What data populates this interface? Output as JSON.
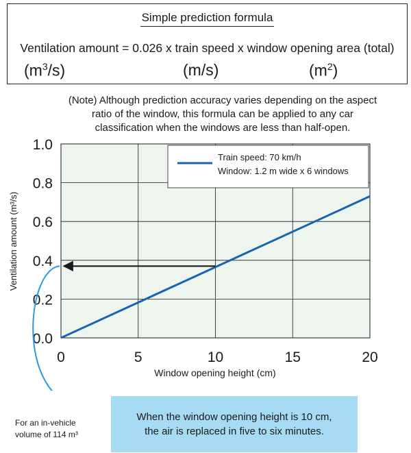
{
  "formula": {
    "title": "Simple prediction formula",
    "equation": "Ventilation amount = 0.026 x train speed x window opening area (total)",
    "unit_ventilation_base": "(m",
    "unit_ventilation_exp": "3",
    "unit_ventilation_tail": "/s)",
    "unit_speed": "(m/s)",
    "unit_area_base": "(m",
    "unit_area_exp": "2",
    "unit_area_tail": ")"
  },
  "note": "(Note) Although prediction accuracy varies depending on the aspect ratio of the window, this formula can be applied to any car classification when the windows are less than half-open.",
  "chart_data": {
    "type": "line",
    "xlabel": "Window opening height (cm)",
    "ylabel": "Ventilation amount (m³/s)",
    "xlim": [
      0,
      20
    ],
    "ylim": [
      0.0,
      1.0
    ],
    "x_ticks": [
      "0",
      "5",
      "10",
      "15",
      "20"
    ],
    "y_ticks": [
      "0.0",
      "0.2",
      "0.4",
      "0.6",
      "0.8",
      "1.0"
    ],
    "grid": true,
    "legend": {
      "placement": "top-right",
      "entries": [
        "Train speed: 70 km/h",
        "Window: 1.2 m wide x 6 windows"
      ]
    },
    "series": [
      {
        "x": [
          0,
          20
        ],
        "y": [
          0.0,
          0.73
        ]
      }
    ],
    "annotation_arrow": {
      "from_x": 10,
      "to_x": 0,
      "y": 0.37
    },
    "colors": {
      "series": "#1a63b0",
      "plot_bg": "#eef5ef",
      "grid": "#1a1a1a",
      "arrow": "#1a1a1a",
      "callout": "#2b9ae0"
    }
  },
  "volume_note_line1": "For an in-vehicle",
  "volume_note_line2": "volume of 114 m³",
  "result_line1": "When the window opening height is 10 cm,",
  "result_line2": "the air is replaced in five to six minutes."
}
